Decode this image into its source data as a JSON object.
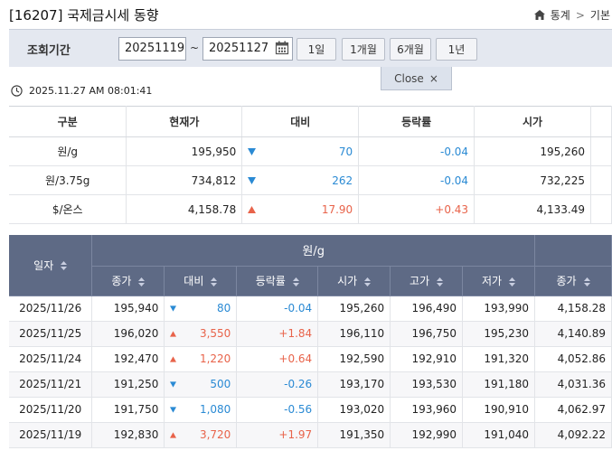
{
  "header": {
    "title": "[16207] 국제금시세 동향",
    "breadcrumb": [
      "통계",
      "기본"
    ]
  },
  "search": {
    "label": "조회기간",
    "start_date": "20251119",
    "tilde": "~",
    "end_date": "20251127",
    "period_buttons": [
      "1일",
      "1개월",
      "6개월",
      "1년"
    ],
    "close_label": "Close",
    "close_symbol": "×"
  },
  "timestamp": "2025.11.27 AM 08:01:41",
  "summary": {
    "headers": [
      "구분",
      "현재가",
      "대비",
      "등락률",
      "시가"
    ],
    "rows": [
      {
        "label": "원/g",
        "current": "195,950",
        "dir": "down",
        "change": "70",
        "rate": "-0.04",
        "open": "195,260"
      },
      {
        "label": "원/3.75g",
        "current": "734,812",
        "dir": "down",
        "change": "262",
        "rate": "-0.04",
        "open": "732,225"
      },
      {
        "label": "$/온스",
        "current": "4,158.78",
        "dir": "up",
        "change": "17.90",
        "rate": "+0.43",
        "open": "4,133.49"
      }
    ]
  },
  "history": {
    "date_header": "일자",
    "group_header": "원/g",
    "sub_headers": [
      "종가",
      "대비",
      "등락률",
      "시가",
      "고가",
      "저가",
      "종가"
    ],
    "rows": [
      {
        "date": "2025/11/26",
        "close": "195,940",
        "dir": "down",
        "change": "80",
        "rate": "-0.04",
        "open": "195,260",
        "high": "196,490",
        "low": "193,990",
        "usd_close": "4,158.28"
      },
      {
        "date": "2025/11/25",
        "close": "196,020",
        "dir": "up",
        "change": "3,550",
        "rate": "+1.84",
        "open": "196,110",
        "high": "196,750",
        "low": "195,230",
        "usd_close": "4,140.89"
      },
      {
        "date": "2025/11/24",
        "close": "192,470",
        "dir": "up",
        "change": "1,220",
        "rate": "+0.64",
        "open": "192,590",
        "high": "192,910",
        "low": "191,320",
        "usd_close": "4,052.86"
      },
      {
        "date": "2025/11/21",
        "close": "191,250",
        "dir": "down",
        "change": "500",
        "rate": "-0.26",
        "open": "193,170",
        "high": "193,530",
        "low": "191,180",
        "usd_close": "4,031.36"
      },
      {
        "date": "2025/11/20",
        "close": "191,750",
        "dir": "down",
        "change": "1,080",
        "rate": "-0.56",
        "open": "193,020",
        "high": "193,960",
        "low": "190,910",
        "usd_close": "4,062.97"
      },
      {
        "date": "2025/11/19",
        "close": "192,830",
        "dir": "up",
        "change": "3,720",
        "rate": "+1.97",
        "open": "191,350",
        "high": "192,990",
        "low": "191,040",
        "usd_close": "4,092.22"
      }
    ]
  },
  "icons": {
    "home": "home-icon",
    "calendar": "calendar-icon",
    "clock": "clock-icon",
    "sort": "sort-icon",
    "up": "triangle-up-icon",
    "down": "triangle-down-icon"
  },
  "colors": {
    "up": "#e8634a",
    "down": "#2a8ad4",
    "header_bg": "#5e6a85",
    "search_bg": "#e4e8f0"
  }
}
